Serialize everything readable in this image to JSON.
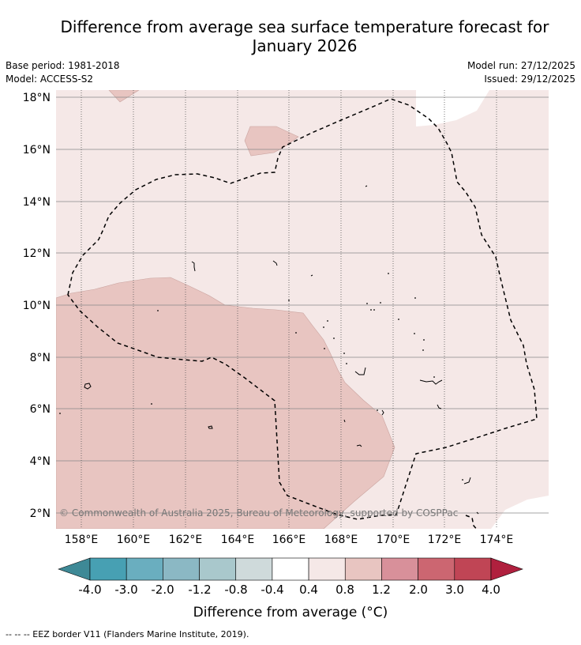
{
  "title": {
    "line1": "Difference from average sea surface temperature forecast for",
    "line2": "January 2026"
  },
  "meta": {
    "base_period": "Base period: 1981-2018",
    "model": "Model: ACCESS-S2",
    "model_run": "Model run: 27/12/2025",
    "issued": "Issued: 29/12/2025"
  },
  "map": {
    "lat_labels": [
      "18°N",
      "16°N",
      "14°N",
      "12°N",
      "10°N",
      "8°N",
      "6°N",
      "4°N",
      "2°N"
    ],
    "lon_labels": [
      "158°E",
      "160°E",
      "162°E",
      "164°E",
      "166°E",
      "168°E",
      "170°E",
      "172°E",
      "174°E"
    ],
    "copyright": "© Commonwealth of Australia 2025, Bureau of Meteorology, supported by COSPPac"
  },
  "colorbar": {
    "ticks": [
      "-4.0",
      "-3.0",
      "-2.0",
      "-1.2",
      "-0.8",
      "-0.4",
      "0.4",
      "0.8",
      "1.2",
      "2.0",
      "3.0",
      "4.0"
    ],
    "colors": [
      "#3e8996",
      "#47a0b3",
      "#6aaebf",
      "#8bb8c4",
      "#a9c8cc",
      "#cfdadb",
      "#ffffff",
      "#f5e8e7",
      "#e8c5c1",
      "#d8909a",
      "#cc6671",
      "#c04555",
      "#b0203e"
    ],
    "label": "Difference from average (°C)"
  },
  "footer": "-- -- -- EEZ border V11 (Flanders Marine Institute, 2019)."
}
